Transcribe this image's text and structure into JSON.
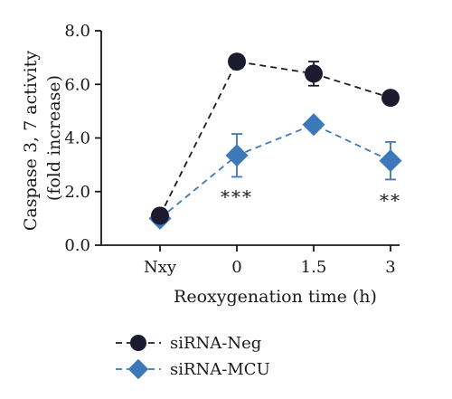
{
  "chart_data": {
    "type": "line",
    "categories": [
      "Nxy",
      "0",
      "1.5",
      "3"
    ],
    "xlabel": "Reoxygenation time (h)",
    "ylabel_line1": "Caspase 3, 7 activity",
    "ylabel_line2": "(fold increase)",
    "ylim": [
      0,
      8
    ],
    "yticks": [
      "0.0",
      "2.0",
      "4.0",
      "6.0",
      "8.0"
    ],
    "ytick_values": [
      0,
      2,
      4,
      6,
      8
    ],
    "grid": false,
    "legend_position": "bottom-left",
    "series": [
      {
        "name": "siRNA-Neg",
        "marker": "circle",
        "color": "#1c1a2e",
        "line_style": "dashed",
        "values": [
          1.1,
          6.85,
          6.4,
          5.5
        ],
        "error": [
          0.1,
          0.15,
          0.45,
          0.15
        ]
      },
      {
        "name": "siRNA-MCU",
        "marker": "diamond",
        "color": "#3d78b8",
        "line_style": "dashed",
        "values": [
          1.0,
          3.35,
          4.5,
          3.15
        ],
        "error": [
          0.08,
          0.8,
          0.15,
          0.7
        ]
      }
    ],
    "annotations": [
      {
        "category": "0",
        "text": "***",
        "y": 2.05
      },
      {
        "category": "3",
        "text": "**",
        "y": 1.9
      }
    ]
  }
}
